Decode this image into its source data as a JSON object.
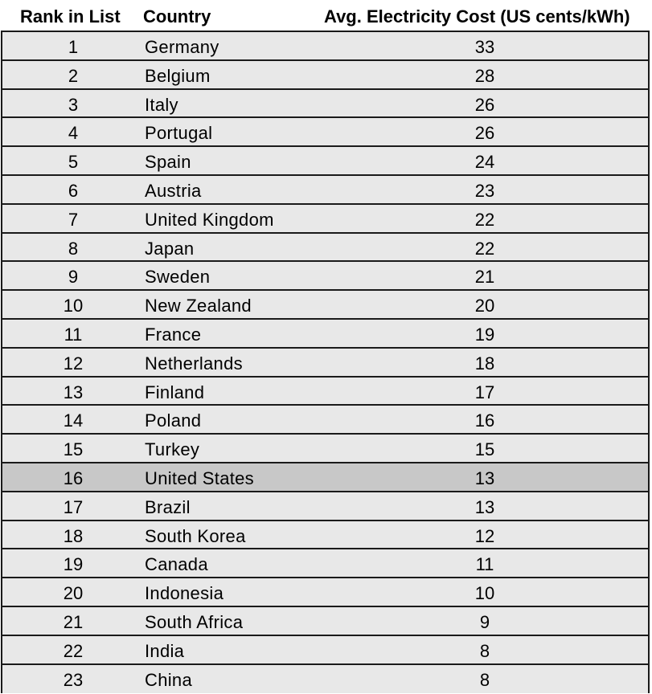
{
  "chart_data": {
    "type": "table",
    "columns": [
      "Rank in List",
      "Country",
      "Avg. Electricity Cost (US cents/kWh)"
    ],
    "highlight_color": "#c8c8c8",
    "row_color": "#e8e8e8",
    "highlighted_country": "United States",
    "rows": [
      {
        "rank": "1",
        "country": "Germany",
        "cost": "33"
      },
      {
        "rank": "2",
        "country": "Belgium",
        "cost": "28"
      },
      {
        "rank": "3",
        "country": "Italy",
        "cost": "26"
      },
      {
        "rank": "4",
        "country": "Portugal",
        "cost": "26"
      },
      {
        "rank": "5",
        "country": "Spain",
        "cost": "24"
      },
      {
        "rank": "6",
        "country": "Austria",
        "cost": "23"
      },
      {
        "rank": "7",
        "country": "United Kingdom",
        "cost": "22"
      },
      {
        "rank": "8",
        "country": "Japan",
        "cost": "22"
      },
      {
        "rank": "9",
        "country": "Sweden",
        "cost": "21"
      },
      {
        "rank": "10",
        "country": "New Zealand",
        "cost": "20"
      },
      {
        "rank": "11",
        "country": "France",
        "cost": "19"
      },
      {
        "rank": "12",
        "country": "Netherlands",
        "cost": "18"
      },
      {
        "rank": "13",
        "country": "Finland",
        "cost": "17"
      },
      {
        "rank": "14",
        "country": "Poland",
        "cost": "16"
      },
      {
        "rank": "15",
        "country": "Turkey",
        "cost": "15"
      },
      {
        "rank": "16",
        "country": "United States",
        "cost": "13"
      },
      {
        "rank": "17",
        "country": "Brazil",
        "cost": "13"
      },
      {
        "rank": "18",
        "country": "South Korea",
        "cost": "12"
      },
      {
        "rank": "19",
        "country": "Canada",
        "cost": "11"
      },
      {
        "rank": "20",
        "country": "Indonesia",
        "cost": "10"
      },
      {
        "rank": "21",
        "country": "South Africa",
        "cost": "9"
      },
      {
        "rank": "22",
        "country": "India",
        "cost": "8"
      },
      {
        "rank": "23",
        "country": "China",
        "cost": "8"
      }
    ]
  }
}
